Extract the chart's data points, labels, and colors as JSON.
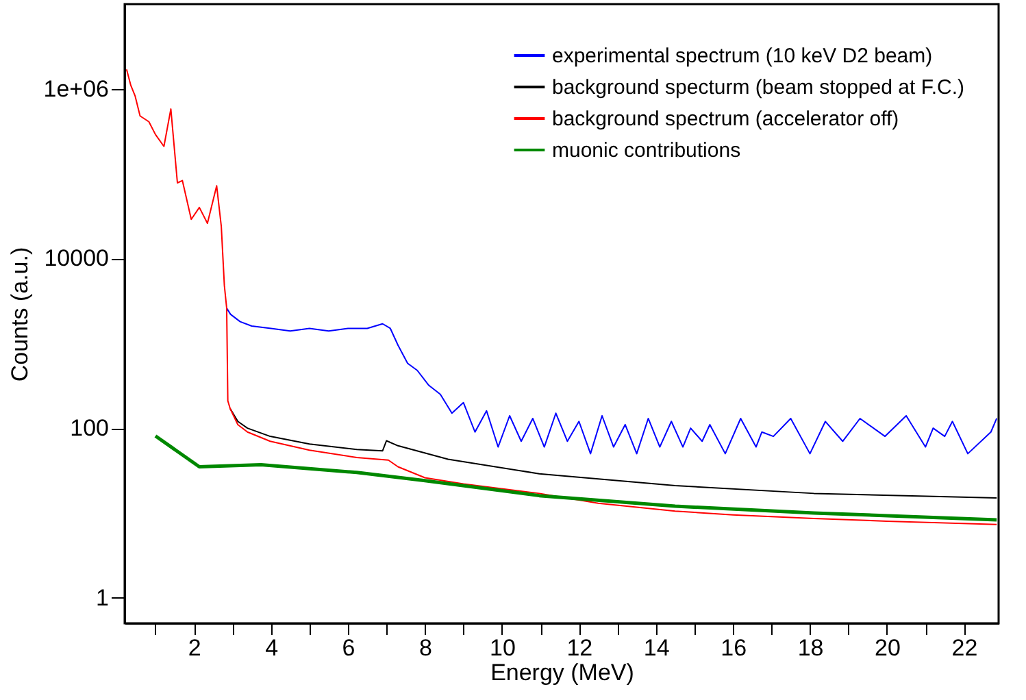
{
  "chart_data": {
    "type": "line",
    "xlabel": "Energy (MeV)",
    "ylabel": "Counts (a.u.)",
    "log": "y",
    "grid": false,
    "legend": "top right",
    "marker": "none",
    "line_style": "solid",
    "xlim": [
      0.2,
      22.9
    ],
    "ylim": [
      0.5,
      10000000
    ],
    "xticks": [
      {
        "value": 1,
        "label": null
      },
      2,
      {
        "value": 3,
        "label": null
      },
      4,
      {
        "value": 5,
        "label": null
      },
      6,
      {
        "value": 7,
        "label": null
      },
      8,
      {
        "value": 9,
        "label": null
      },
      10,
      {
        "value": 11,
        "label": null
      },
      12,
      {
        "value": 13,
        "label": null
      },
      14,
      {
        "value": 15,
        "label": null
      },
      16,
      {
        "value": 17,
        "label": null
      },
      18,
      {
        "value": 19,
        "label": null
      },
      20,
      {
        "value": 21,
        "label": null
      },
      22
    ],
    "yticks": [
      1,
      100,
      10000,
      {
        "value": 1000000,
        "label": "1e+06"
      }
    ],
    "series": [
      {
        "name": "experimental spectrum (10 keV D2 beam)",
        "color": "#0000ff",
        "x": [
          2.85,
          2.95,
          3.2,
          3.5,
          4.0,
          4.5,
          5.0,
          5.5,
          6.0,
          6.5,
          6.9,
          7.1,
          7.3,
          7.55,
          7.8,
          8.1,
          8.4,
          8.7,
          9.0,
          9.3,
          9.6,
          9.9,
          10.2,
          10.5,
          10.8,
          11.1,
          11.4,
          11.7,
          12.0,
          12.3,
          12.6,
          12.9,
          13.2,
          13.5,
          13.8,
          14.1,
          14.4,
          14.7,
          14.9,
          15.2,
          15.4,
          15.8,
          16.2,
          16.6,
          16.75,
          17.05,
          17.5,
          18.0,
          18.4,
          18.85,
          19.3,
          19.95,
          20.5,
          21.0,
          21.2,
          21.5,
          21.7,
          22.1,
          22.7,
          22.85
        ],
        "values": [
          2600,
          2200,
          1800,
          1600,
          1500,
          1400,
          1500,
          1400,
          1500,
          1500,
          1700,
          1500,
          950,
          580,
          480,
          320,
          250,
          150,
          200,
          90,
          160,
          60,
          140,
          70,
          130,
          60,
          150,
          70,
          120,
          50,
          140,
          60,
          110,
          50,
          130,
          60,
          120,
          60,
          100,
          70,
          110,
          50,
          130,
          60,
          90,
          80,
          130,
          50,
          120,
          70,
          130,
          80,
          140,
          60,
          100,
          80,
          120,
          50,
          90,
          130
        ]
      },
      {
        "name": "background specturm (beam stopped at F.C.)",
        "color": "#000000",
        "x": [
          2.94,
          3.14,
          3.39,
          3.98,
          5.0,
          6.23,
          6.9,
          7.0,
          7.3,
          8.6,
          10.97,
          14.5,
          18.1,
          22.85
        ],
        "values": [
          170,
          120,
          100,
          80,
          65,
          56,
          54,
          71,
          62,
          43,
          29,
          21,
          17,
          15
        ]
      },
      {
        "name": "background spectrum (accelerator off)",
        "color": "#ff0000",
        "x": [
          0.25,
          0.36,
          0.47,
          0.6,
          0.83,
          1.0,
          1.22,
          1.4,
          1.57,
          1.7,
          1.93,
          2.14,
          2.35,
          2.59,
          2.71,
          2.79,
          2.85,
          2.88,
          2.94,
          3.14,
          3.39,
          3.98,
          5.0,
          6.23,
          7.05,
          7.3,
          8.0,
          9.0,
          10.97,
          12.5,
          14.5,
          16.0,
          18.1,
          20.0,
          22.85
        ],
        "values": [
          1700000,
          1100000,
          830000,
          480000,
          410000,
          290000,
          210000,
          580000,
          78000,
          83000,
          29000,
          40000,
          26000,
          72000,
          24000,
          4800,
          2600,
          210,
          170,
          110,
          90,
          70,
          55,
          45,
          42,
          35,
          26,
          22,
          17,
          13,
          10.5,
          9.5,
          8.6,
          8,
          7.3
        ]
      },
      {
        "name": "muonic contributions",
        "color": "#008800",
        "x": [
          1.0,
          2.14,
          3.74,
          6.23,
          8.0,
          10.97,
          14.5,
          18.1,
          22.85
        ],
        "values": [
          81,
          35,
          37,
          30,
          24,
          16,
          12,
          10,
          8.3
        ]
      }
    ]
  }
}
